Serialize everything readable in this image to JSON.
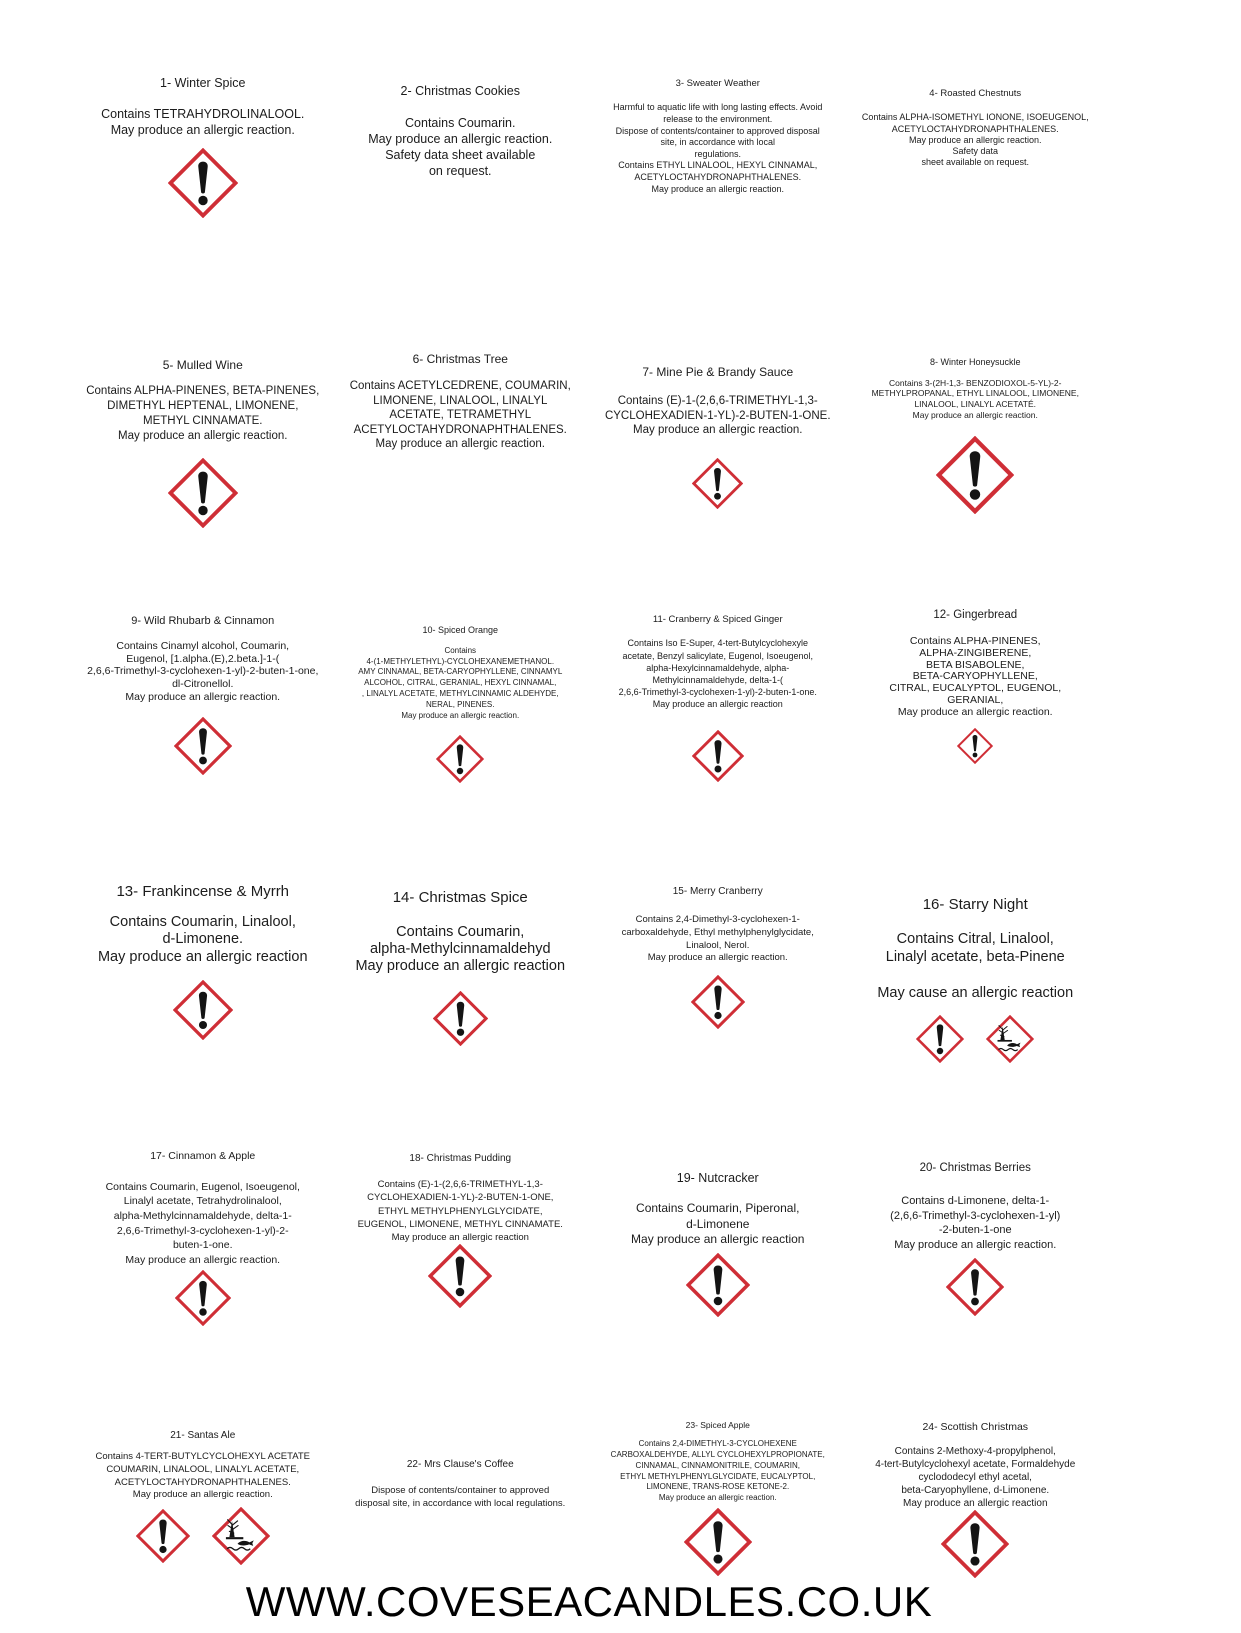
{
  "page": {
    "footer": "WWW.COVESEACANDLES.CO.UK"
  },
  "colors": {
    "hazard_red": "#cf2e36",
    "ink": "#1c1c1c",
    "background": "#ffffff"
  },
  "labels": [
    {
      "id": 1,
      "title": "1- Winter Spice",
      "body": "Contains TETRAHYDROLINALOOL.\nMay produce an allergic reaction.",
      "pictograms": [
        "exclamation-mark"
      ]
    },
    {
      "id": 2,
      "title": "2- Christmas Cookies",
      "body": "Contains Coumarin.\nMay produce an allergic reaction.\nSafety data sheet available\non request.",
      "pictograms": []
    },
    {
      "id": 3,
      "title": "3- Sweater Weather",
      "body": "Harmful to aquatic life with long lasting effects. Avoid\nrelease to the environment.\nDispose of contents/container to approved disposal\nsite, in accordance with local\nregulations.\nContains ETHYL LINALOOL, HEXYL CINNAMAL,\nACETYLOCTAHYDRONAPHTHALENES.\nMay produce an allergic reaction.",
      "pictograms": []
    },
    {
      "id": 4,
      "title": "4- Roasted Chestnuts",
      "body": "Contains ALPHA-ISOMETHYL IONONE, ISOEUGENOL,\nACETYLOCTAHYDRONAPHTHALENES.\nMay produce an allergic reaction.\nSafety data\nsheet available on request.",
      "pictograms": []
    },
    {
      "id": 5,
      "title": "5- Mulled Wine",
      "body": "Contains ALPHA-PINENES, BETA-PINENES,\nDIMETHYL HEPTENAL, LIMONENE,\nMETHYL CINNAMATE.\nMay produce an allergic reaction.",
      "pictograms": [
        "exclamation-mark"
      ]
    },
    {
      "id": 6,
      "title": "6- Christmas Tree",
      "body": "Contains ACETYLCEDRENE, COUMARIN,\nLIMONENE, LINALOOL, LINALYL\nACETATE, TETRAMETHYL\nACETYLOCTAHYDRONAPHTHALENES.\nMay produce an allergic reaction.",
      "pictograms": []
    },
    {
      "id": 7,
      "title": "7- Mine Pie & Brandy Sauce",
      "body": "Contains (E)-1-(2,6,6-TRIMETHYL-1,3-\nCYCLOHEXADIEN-1-YL)-2-BUTEN-1-ONE.\nMay produce an allergic reaction.",
      "pictograms": [
        "exclamation-mark"
      ]
    },
    {
      "id": 8,
      "title": "8- Winter Honeysuckle",
      "body": "Contains 3-(2H-1,3- BENZODIOXOL-5-YL)-2-\nMETHYLPROPANAL, ETHYL LINALOOL, LIMONENE,\nLINALOOL, LINALYL ACETATÉ.\nMay produce an allergic reaction.",
      "pictograms": [
        "exclamation-mark"
      ]
    },
    {
      "id": 9,
      "title": "9- Wild Rhubarb & Cinnamon",
      "body": "Contains Cinamyl alcohol, Coumarin,\nEugenol, [1.alpha.(E),2.beta.]-1-(\n2,6,6-Trimethyl-3-cyclohexen-1-yl)-2-buten-1-one,\ndl-Citronellol.\nMay produce an allergic reaction.",
      "pictograms": [
        "exclamation-mark"
      ]
    },
    {
      "id": 10,
      "title": "10- Spiced Orange",
      "body": "Contains\n4-(1-METHYLETHYL)-CYCLOHEXANEMETHANOL.\nAMY CINNAMAL, BETA-CARYOPHYLLENE, CINNAMYL\nALCOHOL, CITRAL, GERANIAL, HEXYL CINNAMAL,\n, LINALYL ACETATE, METHYLCINNAMIC ALDEHYDE,\nNERAL, PINENES.\nMay produce an allergic reaction.",
      "pictograms": [
        "exclamation-mark"
      ]
    },
    {
      "id": 11,
      "title": "11- Cranberry & Spiced Ginger",
      "body": "Contains Iso E-Super, 4-tert-Butylcyclohexyle\nacetate, Benzyl salicylate, Eugenol, Isoeugenol,\nalpha-Hexylcinnamaldehyde, alpha-\nMethylcinnamaldehyde, delta-1-(\n2,6,6-Trimethyl-3-cyclohexen-1-yl)-2-buten-1-one.\nMay produce an allergic reaction",
      "pictograms": [
        "exclamation-mark"
      ]
    },
    {
      "id": 12,
      "title": "12- Gingerbread",
      "body": "Contains ALPHA-PINENES,\nALPHA-ZINGIBERENE,\nBETA BISABOLENE,\nBETA-CARYOPHYLLENE,\nCITRAL, EUCALYPTOL, EUGENOL,\nGERANIAL,\nMay produce an allergic reaction.",
      "pictograms": [
        "exclamation-mark"
      ]
    },
    {
      "id": 13,
      "title": "13- Frankincense & Myrrh",
      "body": "Contains Coumarin, Linalool,\nd-Limonene.\nMay produce an allergic reaction",
      "pictograms": [
        "exclamation-mark"
      ]
    },
    {
      "id": 14,
      "title": "14- Christmas Spice",
      "body": "Contains Coumarin,\nalpha-Methylcinnamaldehyd\nMay produce an allergic reaction",
      "pictograms": [
        "exclamation-mark"
      ]
    },
    {
      "id": 15,
      "title": "15- Merry Cranberry",
      "body": "Contains 2,4-Dimethyl-3-cyclohexen-1-\ncarboxaldehyde, Ethyl methylphenylglycidate,\nLinalool, Nerol.\nMay produce an allergic reaction.",
      "pictograms": [
        "exclamation-mark"
      ]
    },
    {
      "id": 16,
      "title": "16- Starry Night",
      "body": "Contains Citral, Linalool,\nLinalyl acetate, beta-Pinene\n\nMay cause an allergic reaction",
      "pictograms": [
        "exclamation-mark",
        "environment"
      ]
    },
    {
      "id": 17,
      "title": "17- Cinnamon & Apple",
      "body": "Contains Coumarin, Eugenol, Isoeugenol,\nLinalyl acetate, Tetrahydrolinalool,\nalpha-Methylcinnamaldehyde, delta-1-\n2,6,6-Trimethyl-3-cyclohexen-1-yl)-2-\nbuten-1-one.\nMay produce an allergic reaction.",
      "pictograms": [
        "exclamation-mark"
      ]
    },
    {
      "id": 18,
      "title": "18- Christmas Pudding",
      "body": "Contains (E)-1-(2,6,6-TRIMETHYL-1,3-\nCYCLOHEXADIEN-1-YL)-2-BUTEN-1-ONE,\nETHYL METHYLPHENYLGLYCIDATE,\nEUGENOL, LIMONENE, METHYL CINNAMATE.\nMay produce an allergic reaction",
      "pictograms": [
        "exclamation-mark"
      ]
    },
    {
      "id": 19,
      "title": "19- Nutcracker",
      "body": "Contains Coumarin, Piperonal,\nd-Limonene\nMay produce an allergic reaction",
      "pictograms": [
        "exclamation-mark"
      ]
    },
    {
      "id": 20,
      "title": "20- Christmas Berries",
      "body": "Contains d-Limonene, delta-1-\n(2,6,6-Trimethyl-3-cyclohexen-1-yl)\n-2-buten-1-one\nMay produce an allergic reaction.",
      "pictograms": [
        "exclamation-mark"
      ]
    },
    {
      "id": 21,
      "title": "21- Santas Ale",
      "body": "Contains 4-TERT-BUTYLCYCLOHEXYL ACETATE\nCOUMARIN, LINALOOL, LINALYL ACETATE,\nACETYLOCTAHYDRONAPHTHALENES.\nMay produce an allergic reaction.",
      "pictograms": [
        "exclamation-mark",
        "environment"
      ]
    },
    {
      "id": 22,
      "title": "22- Mrs Clause's Coffee",
      "body": "Dispose of contents/container to approved\ndisposal site, in accordance with local regulations.",
      "pictograms": []
    },
    {
      "id": 23,
      "title": "23- Spiced Apple",
      "body": "Contains 2,4-DIMETHYL-3-CYCLOHEXENE\nCARBOXALDEHYDE, ALLYL CYCLOHEXYLPROPIONATE,\nCINNAMAL, CINNAMONITRILE, COUMARIN,\nETHYL METHYLPHENYLGLYCIDATE, EUCALYPTOL,\nLIMONENE, TRANS-ROSE KETONE-2.\nMay produce an allergic reaction.",
      "pictograms": [
        "exclamation-mark"
      ]
    },
    {
      "id": 24,
      "title": "24- Scottish Christmas",
      "body": "Contains 2-Methoxy-4-propylphenol,\n4-tert-Butylcyclohexyl acetate, Formaldehyde\ncyclododecyl ethyl acetal,\nbeta-Caryophyllene, d-Limonene.\nMay produce an allergic reaction",
      "pictograms": [
        "exclamation-mark"
      ]
    }
  ]
}
